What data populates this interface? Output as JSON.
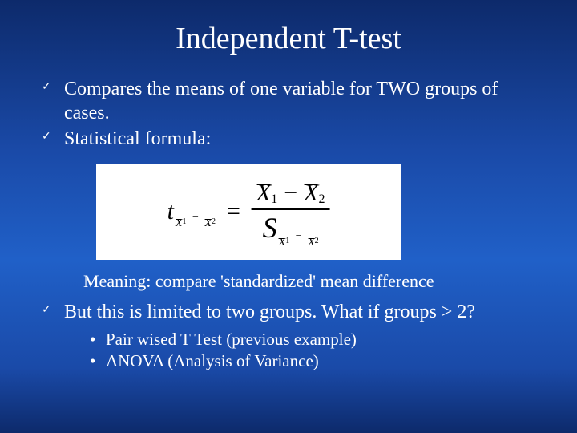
{
  "slide": {
    "background_gradient": [
      "#0d2a6b",
      "#1a4aa8",
      "#2060c8",
      "#1a4aa8",
      "#0d2a6b"
    ],
    "text_color": "#ffffff",
    "title": "Independent T-test",
    "title_fontsize": 38,
    "body_fontsize": 24,
    "font_family": "Times New Roman",
    "bullets": [
      {
        "text": "Compares the means of one variable for TWO groups of cases."
      },
      {
        "text": "Statistical formula:"
      }
    ],
    "formula": {
      "background_color": "#ffffff",
      "text_color": "#000000",
      "lhs_var": "t",
      "lhs_sub_left_var": "X",
      "lhs_sub_left_idx": "1",
      "lhs_sub_right_var": "X",
      "lhs_sub_right_idx": "2",
      "lhs_sub_minus": "−",
      "eq": "=",
      "num_left_var": "X",
      "num_left_idx": "1",
      "num_minus": "−",
      "num_right_var": "X",
      "num_right_idx": "2",
      "den_var": "S",
      "den_sub_left_var": "X",
      "den_sub_left_idx": "1",
      "den_sub_right_var": "X",
      "den_sub_right_idx": "2",
      "den_sub_minus": "−"
    },
    "meaning": "Meaning: compare 'standardized' mean difference",
    "bullets2": [
      {
        "text": "But this is limited to two groups. What if groups > 2?"
      }
    ],
    "sub_bullets": [
      {
        "text": "Pair wised T Test (previous example)"
      },
      {
        "text": "ANOVA (Analysis of Variance)"
      }
    ]
  }
}
